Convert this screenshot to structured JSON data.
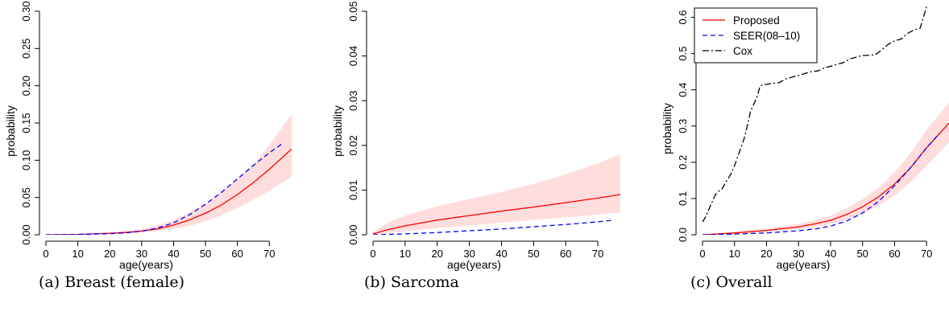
{
  "chart_data": [
    {
      "type": "line",
      "caption": "(a) Breast (female)",
      "xlabel": "age(years)",
      "ylabel": "probability",
      "xlim": [
        0,
        77
      ],
      "ylim": [
        0,
        0.3
      ],
      "xticks": [
        0,
        10,
        20,
        30,
        40,
        50,
        60,
        70
      ],
      "yticks": [
        "0.00",
        "0.05",
        "0.10",
        "0.15",
        "0.20",
        "0.25",
        "0.30"
      ],
      "grid": false,
      "legend": null,
      "series": [
        {
          "name": "Proposed",
          "color": "#ff0000",
          "style": "solid",
          "x": [
            0,
            10,
            20,
            25,
            30,
            35,
            40,
            45,
            50,
            55,
            60,
            65,
            70,
            77
          ],
          "y": [
            0.0,
            0.0005,
            0.002,
            0.003,
            0.005,
            0.008,
            0.013,
            0.02,
            0.029,
            0.04,
            0.054,
            0.07,
            0.088,
            0.115
          ]
        },
        {
          "name": "SEER(08-10)",
          "color": "#0000ff",
          "style": "dashed",
          "x": [
            0,
            10,
            20,
            25,
            30,
            35,
            40,
            45,
            50,
            55,
            60,
            65,
            70,
            74
          ],
          "y": [
            0.0,
            0.0004,
            0.0015,
            0.0025,
            0.005,
            0.009,
            0.016,
            0.027,
            0.041,
            0.057,
            0.075,
            0.093,
            0.11,
            0.122
          ]
        },
        {
          "name": "CI band",
          "color": "#ffdddd",
          "style": "band",
          "x": [
            0,
            10,
            20,
            25,
            30,
            35,
            40,
            45,
            50,
            55,
            60,
            65,
            70,
            77
          ],
          "lower": [
            0.0,
            0.0003,
            0.0012,
            0.002,
            0.003,
            0.005,
            0.008,
            0.012,
            0.018,
            0.026,
            0.036,
            0.047,
            0.059,
            0.078
          ],
          "upper": [
            0.0,
            0.001,
            0.003,
            0.005,
            0.008,
            0.013,
            0.02,
            0.03,
            0.042,
            0.057,
            0.075,
            0.095,
            0.12,
            0.162
          ]
        }
      ]
    },
    {
      "type": "line",
      "caption": "(b) Sarcoma",
      "xlabel": "age(years)",
      "ylabel": "probability",
      "xlim": [
        0,
        77
      ],
      "ylim": [
        0,
        0.05
      ],
      "xticks": [
        0,
        10,
        20,
        30,
        40,
        50,
        60,
        70
      ],
      "yticks": [
        "0.00",
        "0.01",
        "0.02",
        "0.03",
        "0.04",
        "0.05"
      ],
      "grid": false,
      "legend": null,
      "series": [
        {
          "name": "Proposed",
          "color": "#ff0000",
          "style": "solid",
          "x": [
            0,
            5,
            10,
            20,
            30,
            40,
            50,
            60,
            70,
            77
          ],
          "y": [
            0.0002,
            0.0012,
            0.002,
            0.0033,
            0.0043,
            0.0053,
            0.0062,
            0.0072,
            0.0082,
            0.009
          ]
        },
        {
          "name": "SEER(08-10)",
          "color": "#0000ff",
          "style": "dashed",
          "x": [
            0,
            10,
            20,
            30,
            40,
            50,
            60,
            70,
            75
          ],
          "y": [
            0.0,
            0.0002,
            0.0005,
            0.0009,
            0.0013,
            0.0018,
            0.0023,
            0.0029,
            0.0033
          ]
        },
        {
          "name": "CI band",
          "color": "#ffdddd",
          "style": "band",
          "x": [
            0,
            5,
            10,
            20,
            30,
            40,
            50,
            60,
            70,
            77
          ],
          "lower": [
            0.0,
            0.0004,
            0.0008,
            0.0015,
            0.0021,
            0.0027,
            0.0033,
            0.0039,
            0.0045,
            0.005
          ],
          "upper": [
            0.0006,
            0.0028,
            0.0043,
            0.0064,
            0.008,
            0.0096,
            0.0114,
            0.0135,
            0.016,
            0.018
          ]
        }
      ]
    },
    {
      "type": "line",
      "caption": "(c) Overall",
      "xlabel": "age(years)",
      "ylabel": "probability",
      "xlim": [
        0,
        77
      ],
      "ylim": [
        0,
        0.63
      ],
      "xticks": [
        0,
        10,
        20,
        30,
        40,
        50,
        60,
        70
      ],
      "yticks": [
        "0.0",
        "0.1",
        "0.2",
        "0.3",
        "0.4",
        "0.5",
        "0.6"
      ],
      "grid": false,
      "legend": {
        "position": "top-left",
        "entries": [
          "Proposed",
          "SEER(08–10)",
          "Cox"
        ]
      },
      "series": [
        {
          "name": "Proposed",
          "color": "#ff0000",
          "style": "solid",
          "x": [
            0,
            10,
            20,
            30,
            35,
            40,
            45,
            50,
            55,
            60,
            65,
            70,
            77
          ],
          "y": [
            0.0,
            0.005,
            0.012,
            0.022,
            0.03,
            0.04,
            0.056,
            0.077,
            0.105,
            0.14,
            0.185,
            0.24,
            0.308
          ]
        },
        {
          "name": "SEER(08–10)",
          "color": "#0000ff",
          "style": "dashed",
          "x": [
            0,
            10,
            20,
            30,
            35,
            40,
            45,
            50,
            55,
            60,
            65,
            70,
            74
          ],
          "y": [
            0.0,
            0.002,
            0.005,
            0.011,
            0.016,
            0.024,
            0.038,
            0.06,
            0.092,
            0.135,
            0.185,
            0.24,
            0.28
          ]
        },
        {
          "name": "CI band",
          "color": "#ffdddd",
          "style": "band",
          "x": [
            0,
            10,
            20,
            30,
            35,
            40,
            45,
            50,
            55,
            60,
            65,
            70,
            77
          ],
          "lower": [
            0.0,
            0.003,
            0.008,
            0.015,
            0.021,
            0.029,
            0.041,
            0.058,
            0.08,
            0.108,
            0.145,
            0.19,
            0.255
          ],
          "upper": [
            0.0,
            0.008,
            0.017,
            0.03,
            0.04,
            0.053,
            0.073,
            0.098,
            0.13,
            0.172,
            0.225,
            0.29,
            0.365
          ]
        },
        {
          "name": "Cox",
          "color": "#000000",
          "style": "dotdash",
          "x": [
            0,
            1,
            2,
            3,
            4,
            5,
            6,
            7,
            8,
            9,
            10,
            11,
            12,
            13,
            14,
            15,
            16,
            17,
            18,
            19,
            20,
            22,
            24,
            26,
            28,
            30,
            32,
            34,
            36,
            38,
            40,
            42,
            44,
            46,
            48,
            50,
            52,
            54,
            56,
            58,
            60,
            62,
            64,
            66,
            68,
            70
          ],
          "y": [
            0.035,
            0.05,
            0.07,
            0.09,
            0.11,
            0.12,
            0.125,
            0.14,
            0.155,
            0.17,
            0.19,
            0.215,
            0.24,
            0.265,
            0.3,
            0.34,
            0.36,
            0.38,
            0.41,
            0.415,
            0.415,
            0.418,
            0.42,
            0.43,
            0.435,
            0.44,
            0.445,
            0.45,
            0.452,
            0.46,
            0.465,
            0.47,
            0.475,
            0.485,
            0.49,
            0.495,
            0.495,
            0.497,
            0.51,
            0.525,
            0.535,
            0.54,
            0.555,
            0.565,
            0.57,
            0.63
          ]
        }
      ]
    }
  ]
}
